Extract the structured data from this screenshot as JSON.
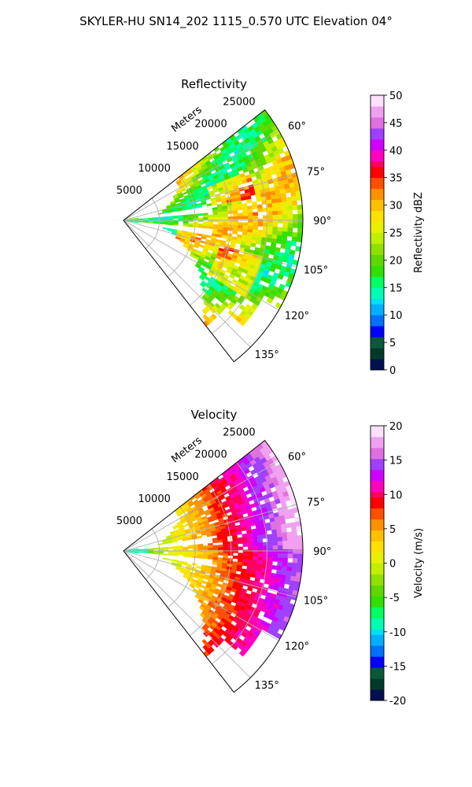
{
  "figure": {
    "suptitle": "SKYLER-HU  SN14_202  1115_0.570 UTC Elevation 04°"
  },
  "chart_data": [
    {
      "type": "heatmap",
      "title": "Reflectivity",
      "radial_axis_label": "Meters",
      "radial_ticks": [
        "5000",
        "10000",
        "15000",
        "20000",
        "25000"
      ],
      "radial_tick_values": [
        5000,
        10000,
        15000,
        20000,
        25000
      ],
      "range_max_m": 25000,
      "azimuth_ticks": [
        "60°",
        "75°",
        "90°",
        "105°",
        "120°",
        "135°"
      ],
      "azimuth_tick_values": [
        60,
        75,
        90,
        105,
        120,
        135
      ],
      "azimuth_range": [
        52,
        142
      ],
      "grid": true,
      "colorbar": {
        "label": "Reflectivity dBZ",
        "min": 0,
        "max": 50,
        "ticks": [
          "0",
          "5",
          "10",
          "15",
          "20",
          "25",
          "30",
          "35",
          "40",
          "45",
          "50"
        ],
        "tick_values": [
          0,
          5,
          10,
          15,
          20,
          25,
          30,
          35,
          40,
          45,
          50
        ]
      },
      "colormap": [
        "#001050",
        "#003a2a",
        "#0a5a3a",
        "#0000ff",
        "#0070ff",
        "#00b0ff",
        "#00e0ff",
        "#00ffb0",
        "#00ff60",
        "#30e000",
        "#60d800",
        "#90e000",
        "#c0f000",
        "#e8f000",
        "#ffe000",
        "#ffc000",
        "#ff9000",
        "#ff5000",
        "#ff0000",
        "#ff0060",
        "#ff00c0",
        "#d000ff",
        "#a040ff",
        "#e070e0",
        "#f0a0f0",
        "#ffe0ff"
      ]
    },
    {
      "type": "heatmap",
      "title": "Velocity",
      "radial_axis_label": "Meters",
      "radial_ticks": [
        "5000",
        "10000",
        "15000",
        "20000",
        "25000"
      ],
      "radial_tick_values": [
        5000,
        10000,
        15000,
        20000,
        25000
      ],
      "range_max_m": 25000,
      "azimuth_ticks": [
        "60°",
        "75°",
        "90°",
        "105°",
        "120°",
        "135°"
      ],
      "azimuth_tick_values": [
        60,
        75,
        90,
        105,
        120,
        135
      ],
      "azimuth_range": [
        52,
        142
      ],
      "grid": true,
      "colorbar": {
        "label": "Velocity (m/s)",
        "min": -20,
        "max": 20,
        "ticks": [
          "-20",
          "-15",
          "-10",
          "-5",
          "0",
          "5",
          "10",
          "15",
          "20"
        ],
        "tick_values": [
          -20,
          -15,
          -10,
          -5,
          0,
          5,
          10,
          15,
          20
        ]
      },
      "colormap": [
        "#001050",
        "#003a2a",
        "#0a5a3a",
        "#0000ff",
        "#0070ff",
        "#00b0ff",
        "#00e0ff",
        "#00ffb0",
        "#00ff60",
        "#30e000",
        "#60d800",
        "#90e000",
        "#c0f000",
        "#e8f000",
        "#ffe000",
        "#ffc000",
        "#ff9000",
        "#ff5000",
        "#ff0000",
        "#ff0060",
        "#ff00c0",
        "#d000ff",
        "#a040ff",
        "#e070e0",
        "#f0a0f0",
        "#ffe0ff"
      ]
    }
  ]
}
